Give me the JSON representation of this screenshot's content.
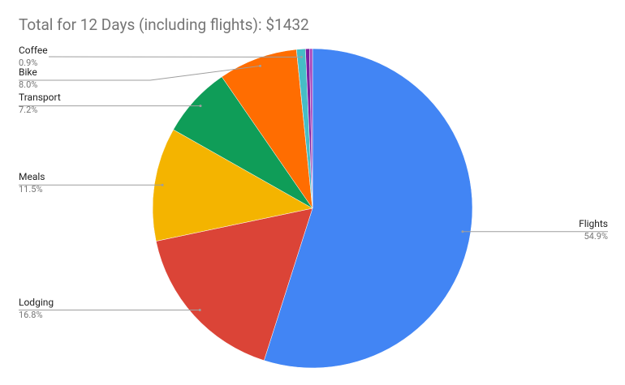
{
  "chart_data": {
    "type": "pie",
    "title": "Total for 12 Days (including flights): $1432",
    "categories": [
      "Flights",
      "Lodging",
      "Meals",
      "Transport",
      "Bike",
      "Coffee",
      null,
      null
    ],
    "values": [
      54.9,
      16.8,
      11.5,
      7.2,
      8.0,
      0.9,
      0.4,
      0.3
    ],
    "value_labels": [
      "54.9%",
      "16.8%",
      "11.5%",
      "7.2%",
      "8.0%",
      "0.9%",
      null,
      null
    ],
    "colors": [
      "#4285f4",
      "#db4437",
      "#f4b400",
      "#0f9d58",
      "#ff6d01",
      "#46bdc6",
      "#7b1fa2",
      "#ab47bc"
    ]
  }
}
